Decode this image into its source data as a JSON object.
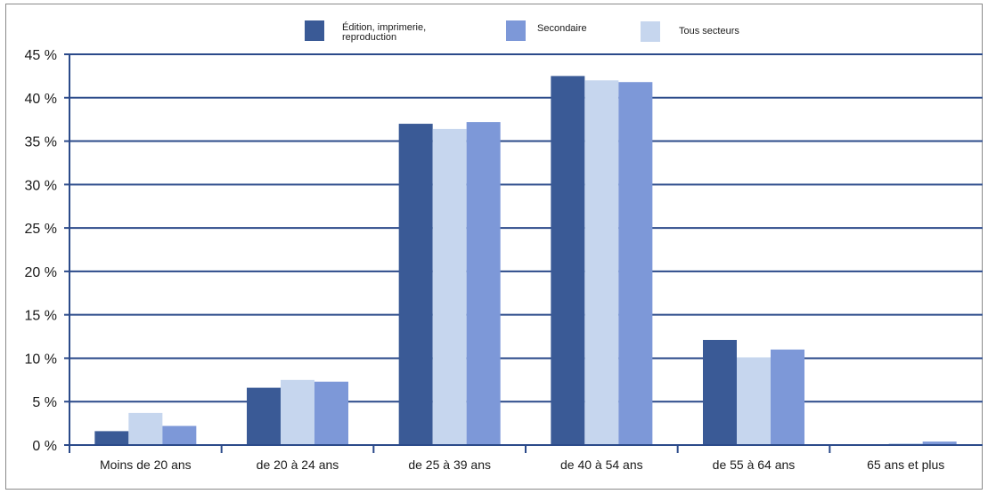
{
  "chart_data": {
    "type": "bar",
    "categories": [
      "Moins de 20 ans",
      "de 20 à 24 ans",
      "de 25 à 39 ans",
      "de 40 à 54 ans",
      "de 55 à 64 ans",
      "65 ans et plus"
    ],
    "series": [
      {
        "name": "Édition, imprimerie, reproduction",
        "color": "#3a5a96",
        "values": [
          1.6,
          6.6,
          37.0,
          42.5,
          12.1,
          0.1
        ]
      },
      {
        "name": "Tous secteurs",
        "color": "#c6d6ee",
        "values": [
          3.7,
          7.5,
          36.4,
          42.0,
          10.1,
          0.2
        ]
      },
      {
        "name": "Secondaire",
        "color": "#7d98d8",
        "values": [
          2.2,
          7.3,
          37.2,
          41.8,
          11.0,
          0.4
        ]
      }
    ],
    "ylim": [
      0,
      45
    ],
    "yticks": [
      "0 %",
      "5 %",
      "10 %",
      "15 %",
      "20 %",
      "25 %",
      "30 %",
      "35 %",
      "40 %",
      "45 %"
    ],
    "grid": true,
    "legend_position": "top-center"
  },
  "legend": {
    "item1": "Édition, imprimerie, reproduction",
    "item2": "Secondaire",
    "item3": "Tous secteurs"
  }
}
